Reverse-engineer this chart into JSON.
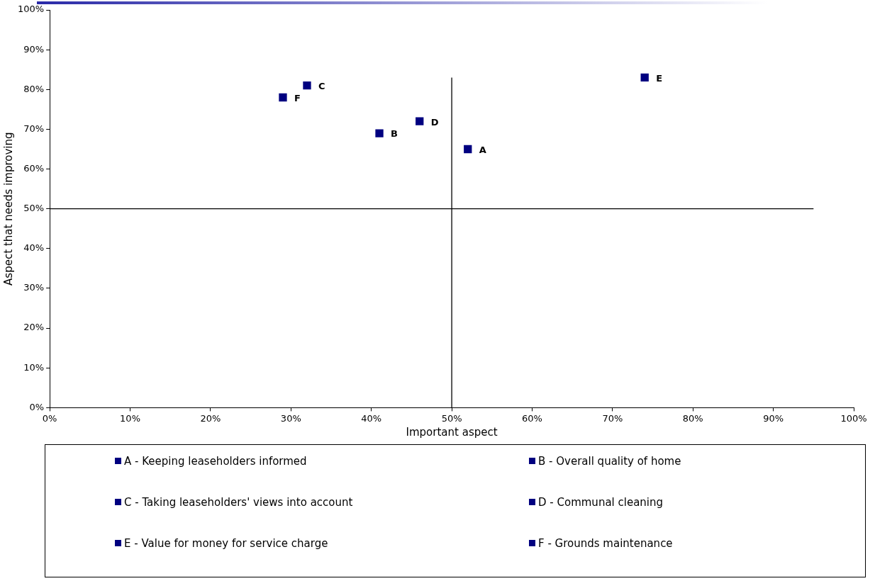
{
  "chart_data": {
    "type": "scatter",
    "xlabel": "Important aspect",
    "ylabel": "Aspect that needs improving",
    "xlim": [
      0,
      100
    ],
    "ylim": [
      0,
      100
    ],
    "xticks": [
      {
        "value": 0,
        "label": "0%"
      },
      {
        "value": 10,
        "label": "10%"
      },
      {
        "value": 20,
        "label": "20%"
      },
      {
        "value": 30,
        "label": "30%"
      },
      {
        "value": 40,
        "label": "40%"
      },
      {
        "value": 50,
        "label": "50%"
      },
      {
        "value": 60,
        "label": "60%"
      },
      {
        "value": 70,
        "label": "70%"
      },
      {
        "value": 80,
        "label": "80%"
      },
      {
        "value": 90,
        "label": "90%"
      },
      {
        "value": 100,
        "label": "100%"
      }
    ],
    "yticks": [
      {
        "value": 0,
        "label": "0%"
      },
      {
        "value": 10,
        "label": "10%"
      },
      {
        "value": 20,
        "label": "20%"
      },
      {
        "value": 30,
        "label": "30%"
      },
      {
        "value": 40,
        "label": "40%"
      },
      {
        "value": 50,
        "label": "50%"
      },
      {
        "value": 60,
        "label": "60%"
      },
      {
        "value": 70,
        "label": "70%"
      },
      {
        "value": 80,
        "label": "80%"
      },
      {
        "value": 90,
        "label": "90%"
      },
      {
        "value": 100,
        "label": "100%"
      }
    ],
    "grid": false,
    "legend": "bottom",
    "marker": "square",
    "series": [
      {
        "name": "A - Keeping leaseholders informed",
        "color": "#000080",
        "x": [
          52
        ],
        "values": [
          65
        ]
      },
      {
        "name": "B - Overall quality of home",
        "color": "#000080",
        "x": [
          41
        ],
        "values": [
          69
        ]
      },
      {
        "name": "C - Taking leaseholders' views into account",
        "color": "#000080",
        "x": [
          32
        ],
        "values": [
          81
        ]
      },
      {
        "name": "D - Communal cleaning",
        "color": "#000080",
        "x": [
          46
        ],
        "values": [
          72
        ]
      },
      {
        "name": "E - Value for money for service charge",
        "color": "#000080",
        "x": [
          74
        ],
        "values": [
          83
        ]
      },
      {
        "name": "F - Grounds maintenance",
        "color": "#000080",
        "x": [
          29
        ],
        "values": [
          78
        ]
      },
      {
        "type": "line",
        "color": "#000000",
        "marker": "none",
        "x": [
          50,
          50
        ],
        "values": [
          0,
          83
        ]
      },
      {
        "type": "line",
        "color": "#000000",
        "marker": "none",
        "x": [
          0,
          95
        ],
        "values": [
          50,
          50
        ]
      }
    ],
    "annotations": [
      {
        "text": "A",
        "x": 52,
        "y": 65
      },
      {
        "text": "B",
        "x": 41,
        "y": 69
      },
      {
        "text": "C",
        "x": 32,
        "y": 81
      },
      {
        "text": "D",
        "x": 46,
        "y": 72
      },
      {
        "text": "E",
        "x": 74,
        "y": 83
      },
      {
        "text": "F",
        "x": 29,
        "y": 78
      }
    ]
  }
}
